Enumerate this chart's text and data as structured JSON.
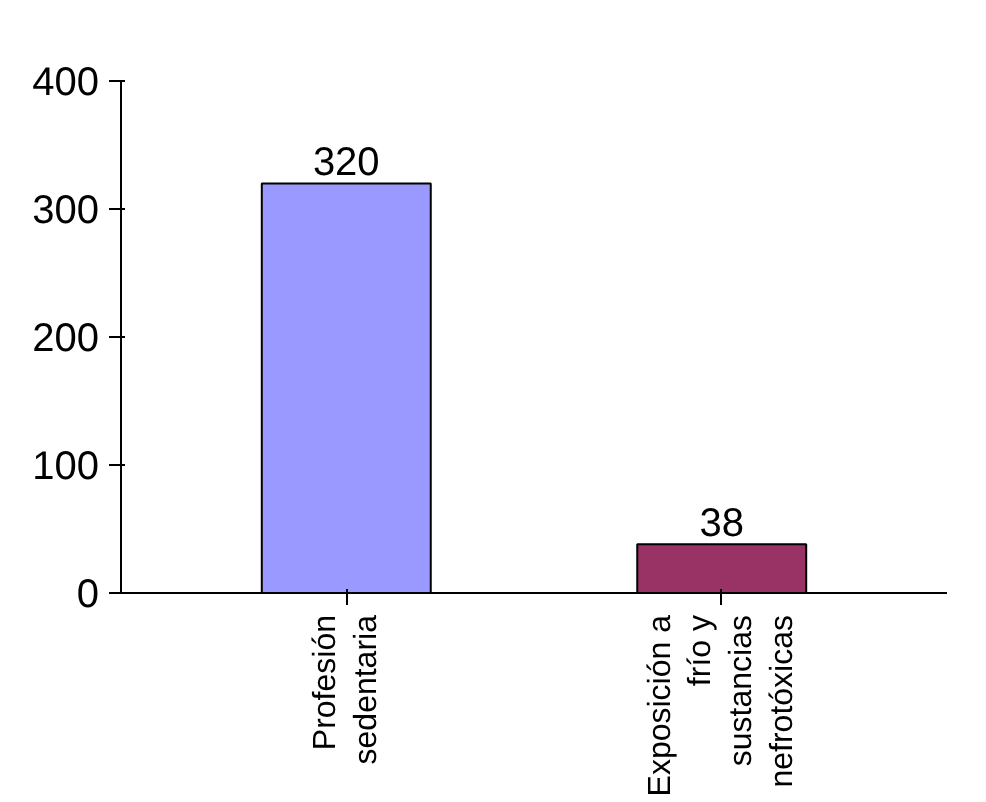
{
  "chart_data": {
    "type": "bar",
    "categories": [
      "Profesión sedentaria",
      "Exposición a frío y sustancias nefrotóxicas"
    ],
    "values": [
      320,
      38
    ],
    "colors": [
      "#9999ff",
      "#993366"
    ],
    "ylim": [
      0,
      400
    ],
    "yticks": [
      0,
      100,
      200,
      300,
      400
    ],
    "data_labels": true,
    "grid": false
  }
}
